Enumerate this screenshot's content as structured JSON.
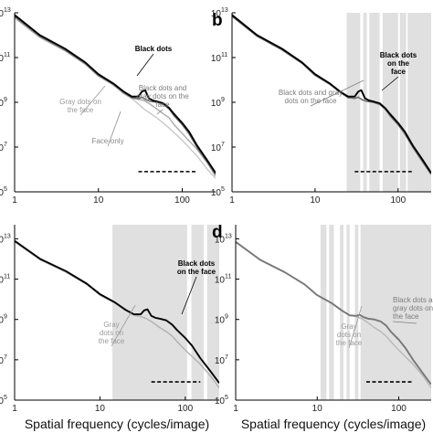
{
  "chart_data": [
    {
      "type": "line",
      "panel": "a",
      "panel_letter": "",
      "x_scale": "log",
      "y_scale": "log",
      "xlim": [
        1,
        250
      ],
      "ylim": [
        100000,
        10000000000000
      ],
      "x_ticks": [
        1,
        10,
        100
      ],
      "y_ticks": [
        100000,
        10000000,
        1000000000,
        100000000000,
        10000000000000
      ],
      "x_tick_labels": [
        "1",
        "10",
        "100"
      ],
      "y_tick_mantissa": "10",
      "y_tick_exponents": [
        "5",
        "7",
        "9",
        "11",
        "13"
      ],
      "xlabel": "",
      "shaded_bands": [],
      "series": [
        {
          "name": "Face-only",
          "color": "#c8c8c8",
          "width": 1.4,
          "x": [
            1,
            2,
            4,
            7,
            10,
            15,
            20,
            25,
            35,
            50,
            70,
            100,
            150,
            200,
            250
          ],
          "y": [
            6000000000000,
            800000000000,
            200000000000,
            50000000000,
            15000000000,
            6000000000,
            2500000000,
            1500000000,
            500000000,
            200000000,
            70000000,
            20000000,
            4000000,
            1000000,
            400000
          ]
        },
        {
          "name": "Gray dots on the face",
          "color": "#a9a9a9",
          "width": 1.4,
          "x": [
            1,
            2,
            4,
            7,
            10,
            15,
            20,
            25,
            30,
            35,
            40,
            50,
            60,
            70,
            80,
            100,
            150,
            200,
            250
          ],
          "y": [
            6000000000000,
            800000000000,
            200000000000,
            50000000000,
            15000000000,
            6000000000,
            2500000000,
            1500000000,
            1400000000,
            1200000000,
            900000000,
            500000000,
            300000000,
            200000000,
            100000000,
            40000000,
            8000000,
            2000000,
            500000
          ]
        },
        {
          "name": "Black dots and gray dots on the face",
          "color": "#707070",
          "width": 1.6,
          "x": [
            1,
            2,
            4,
            7,
            10,
            15,
            20,
            25,
            30,
            33,
            37,
            42,
            50,
            60,
            70,
            80,
            100,
            120,
            150,
            200,
            250
          ],
          "y": [
            7000000000000,
            900000000000,
            220000000000,
            55000000000,
            16000000000,
            6500000000,
            2800000000,
            1600000000,
            1500000000,
            1700000000,
            1300000000,
            1100000000,
            1000000000,
            800000000,
            500000000,
            250000000,
            100000000,
            40000000,
            10000000,
            2000000,
            600000
          ]
        },
        {
          "name": "Black dots",
          "color": "#000000",
          "width": 1.9,
          "x": [
            1,
            2,
            4,
            7,
            10,
            15,
            20,
            25,
            30,
            33,
            36,
            40,
            45,
            50,
            60,
            70,
            80,
            100,
            120,
            150,
            200,
            250
          ],
          "y": [
            8000000000000,
            1000000000000,
            250000000000,
            60000000000,
            18000000000,
            7000000000,
            3000000000,
            1800000000,
            1800000000,
            3000000000,
            3500000000,
            1500000000,
            1200000000,
            1100000000,
            900000000,
            550000000,
            300000000,
            120000000,
            50000000,
            12000000,
            2500000,
            700000
          ]
        }
      ],
      "annotations": [
        {
          "text": "Black dots",
          "color": "#000000",
          "bold": true
        },
        {
          "text": "Black dots and gray dots on the face",
          "color": "#7d7d7d",
          "bold": false
        },
        {
          "text": "Gray dots on the face",
          "color": "#9a9a9a",
          "bold": false
        },
        {
          "text": "Face-only",
          "color": "#8a8a8a",
          "bold": false
        }
      ],
      "dashed_line": {
        "x": [
          30,
          150
        ],
        "y": 800000
      }
    },
    {
      "type": "line",
      "panel": "b",
      "panel_letter": "b",
      "x_scale": "log",
      "y_scale": "log",
      "xlim": [
        1,
        250
      ],
      "ylim": [
        100000,
        10000000000000
      ],
      "x_ticks": [
        1,
        10,
        100
      ],
      "y_ticks": [
        100000,
        10000000,
        1000000000,
        100000000000,
        10000000000000
      ],
      "x_tick_labels": [
        "1",
        "10",
        "100"
      ],
      "y_tick_mantissa": "10",
      "y_tick_exponents": [
        "5",
        "7",
        "9",
        "11",
        "13"
      ],
      "xlabel": "",
      "shaded_bands": [
        [
          24,
          35
        ],
        [
          38,
          42
        ],
        [
          45,
          60
        ],
        [
          65,
          100
        ],
        [
          105,
          125
        ],
        [
          130,
          250
        ]
      ],
      "series": [
        {
          "name": "Black dots and gray dots on the face",
          "color": "#707070",
          "width": 1.6,
          "x": [
            1,
            2,
            4,
            7,
            10,
            15,
            20,
            25,
            30,
            33,
            37,
            42,
            50,
            60,
            70,
            80,
            100,
            120,
            150,
            200,
            250
          ],
          "y": [
            7000000000000,
            900000000000,
            220000000000,
            55000000000,
            16000000000,
            6500000000,
            2800000000,
            1600000000,
            1500000000,
            1700000000,
            1300000000,
            1100000000,
            1000000000,
            800000000,
            500000000,
            250000000,
            100000000,
            40000000,
            10000000,
            2000000,
            600000
          ]
        },
        {
          "name": "Black dots on the face",
          "color": "#000000",
          "width": 1.9,
          "x": [
            1,
            2,
            4,
            7,
            10,
            15,
            20,
            25,
            30,
            33,
            36,
            40,
            45,
            50,
            60,
            70,
            80,
            100,
            120,
            150,
            200,
            250
          ],
          "y": [
            8000000000000,
            1000000000000,
            250000000000,
            60000000000,
            18000000000,
            7000000000,
            3000000000,
            1800000000,
            1800000000,
            3000000000,
            3500000000,
            1500000000,
            1200000000,
            1100000000,
            900000000,
            550000000,
            300000000,
            120000000,
            50000000,
            12000000,
            2500000,
            700000
          ]
        }
      ],
      "annotations": [
        {
          "text": "Black dots on the face",
          "color": "#000000",
          "bold": true
        },
        {
          "text": "Black dots and gray dots on the face",
          "color": "#7d7d7d",
          "bold": false
        }
      ],
      "dashed_line": {
        "x": [
          30,
          150
        ],
        "y": 800000
      }
    },
    {
      "type": "line",
      "panel": "c",
      "panel_letter": "",
      "x_scale": "log",
      "y_scale": "log",
      "xlim": [
        1,
        250
      ],
      "ylim": [
        100000,
        50000000000000
      ],
      "x_ticks": [
        1,
        10,
        100
      ],
      "y_ticks": [
        100000,
        10000000,
        1000000000,
        100000000000,
        10000000000000
      ],
      "x_tick_labels": [
        "1",
        "10",
        "100"
      ],
      "y_tick_mantissa": "10",
      "y_tick_exponents": [
        "5",
        "7",
        "9",
        "11",
        "13"
      ],
      "xlabel": "Spatial frequency (cycles/image)",
      "shaded_bands": [
        [
          14,
          105
        ],
        [
          118,
          165
        ],
        [
          180,
          250
        ]
      ],
      "series": [
        {
          "name": "Gray dots on the face",
          "color": "#b0b0b0",
          "width": 1.4,
          "x": [
            1,
            2,
            4,
            7,
            10,
            15,
            20,
            25,
            30,
            35,
            40,
            50,
            60,
            70,
            80,
            100,
            150,
            200,
            250
          ],
          "y": [
            7000000000000,
            900000000000,
            220000000000,
            55000000000,
            16000000000,
            6500000000,
            2800000000,
            1600000000,
            1400000000,
            1100000000,
            800000000,
            400000000,
            250000000,
            150000000,
            80000000,
            30000000,
            6000000,
            1500000,
            400000
          ]
        },
        {
          "name": "Black dots on the face",
          "color": "#000000",
          "width": 1.9,
          "x": [
            1,
            2,
            4,
            7,
            10,
            15,
            20,
            25,
            30,
            33,
            36,
            40,
            45,
            50,
            60,
            70,
            80,
            100,
            120,
            150,
            200,
            250
          ],
          "y": [
            8000000000000,
            1000000000000,
            250000000000,
            60000000000,
            18000000000,
            7000000000,
            3000000000,
            1800000000,
            1800000000,
            2800000000,
            3200000000,
            1500000000,
            1200000000,
            1100000000,
            900000000,
            550000000,
            300000000,
            120000000,
            50000000,
            12000000,
            2500000,
            700000
          ]
        }
      ],
      "annotations": [
        {
          "text": "Black dots on the face",
          "color": "#000000",
          "bold": true
        },
        {
          "text": "Gray dots on the face",
          "color": "#9a9a9a",
          "bold": false
        }
      ],
      "dashed_line": {
        "x": [
          40,
          150
        ],
        "y": 800000
      }
    },
    {
      "type": "line",
      "panel": "d",
      "panel_letter": "d",
      "x_scale": "log",
      "y_scale": "log",
      "xlim": [
        1,
        250
      ],
      "ylim": [
        100000,
        50000000000000
      ],
      "x_ticks": [
        1,
        10,
        100
      ],
      "y_ticks": [
        100000,
        10000000,
        1000000000,
        100000000000,
        10000000000000
      ],
      "x_tick_labels": [
        "1",
        "10",
        "100"
      ],
      "y_tick_mantissa": "10",
      "y_tick_exponents": [
        "5",
        "7",
        "9",
        "11",
        "13"
      ],
      "xlabel": "Spatial frequency (cycles/image)",
      "shaded_bands": [
        [
          11,
          13
        ],
        [
          14,
          16
        ],
        [
          19,
          21
        ],
        [
          23,
          25
        ],
        [
          29,
          32
        ],
        [
          34,
          250
        ]
      ],
      "series": [
        {
          "name": "Gray dots on the face",
          "color": "#b8b8b8",
          "width": 1.4,
          "x": [
            1,
            2,
            4,
            7,
            10,
            15,
            20,
            25,
            30,
            35,
            40,
            50,
            60,
            70,
            80,
            100,
            150,
            200,
            250
          ],
          "y": [
            7000000000000,
            900000000000,
            220000000000,
            55000000000,
            16000000000,
            6500000000,
            2800000000,
            1600000000,
            1400000000,
            1100000000,
            800000000,
            400000000,
            250000000,
            150000000,
            80000000,
            30000000,
            6000000,
            1500000,
            400000
          ]
        },
        {
          "name": "Black dots and gray dots on the face",
          "color": "#777777",
          "width": 1.9,
          "x": [
            1,
            2,
            4,
            7,
            10,
            15,
            20,
            25,
            30,
            33,
            37,
            42,
            50,
            60,
            70,
            80,
            100,
            120,
            150,
            200,
            250
          ],
          "y": [
            7000000000000,
            900000000000,
            220000000000,
            55000000000,
            16000000000,
            6500000000,
            2800000000,
            1600000000,
            1500000000,
            1700000000,
            1300000000,
            1100000000,
            1000000000,
            800000000,
            500000000,
            250000000,
            100000000,
            40000000,
            10000000,
            2000000,
            600000
          ]
        }
      ],
      "annotations": [
        {
          "text": "Black dots and gray dots on the face",
          "color": "#7d7d7d",
          "bold": false
        },
        {
          "text": "Gray dots on the face",
          "color": "#9a9a9a",
          "bold": false
        }
      ],
      "dashed_line": {
        "x": [
          40,
          150
        ],
        "y": 800000
      }
    }
  ]
}
